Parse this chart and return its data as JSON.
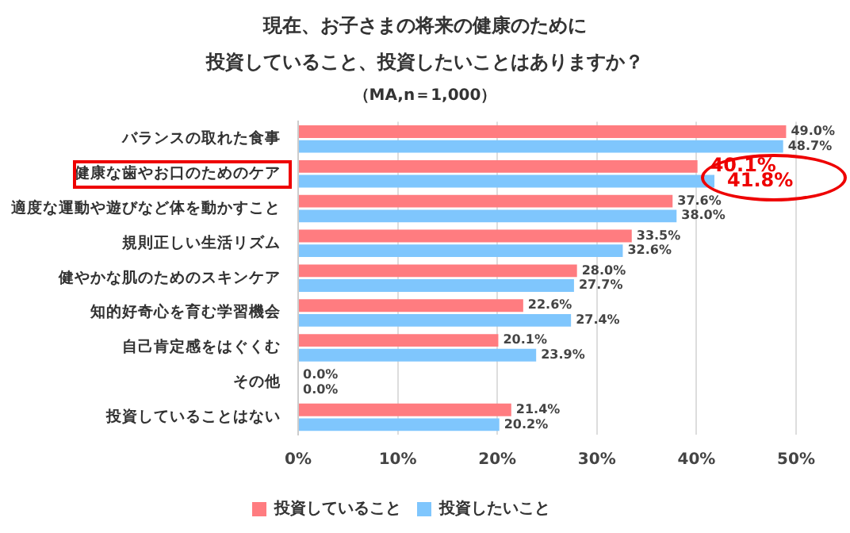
{
  "chart_data": {
    "type": "bar",
    "orientation": "horizontal",
    "title": "現在、お子さまの将来の健康のために",
    "subtitle": "投資していること、投資したいことはありますか？",
    "annotations": [
      "（MA,n＝1,000）"
    ],
    "categories": [
      "バランスの取れた食事",
      "健康な歯やお口のためのケア",
      "適度な運動や遊びなど体を動かすこと",
      "規則正しい生活リズム",
      "健やかな肌のためのスキンケア",
      "知的好奇心を育む学習機会",
      "自己肯定感をはぐくむ",
      "その他",
      "投資していることはない"
    ],
    "series": [
      {
        "name": "投資していること",
        "color": "#ff7c80",
        "values": [
          49.0,
          40.1,
          37.6,
          33.5,
          28.0,
          22.6,
          20.1,
          0.0,
          21.4
        ],
        "value_labels": [
          "49.0%",
          "40.1%",
          "37.6%",
          "33.5%",
          "28.0%",
          "22.6%",
          "20.1%",
          "0.0%",
          "21.4%"
        ]
      },
      {
        "name": "投資したいこと",
        "color": "#7fc6fd",
        "values": [
          48.7,
          41.8,
          38.0,
          32.6,
          27.7,
          27.4,
          23.9,
          0.0,
          20.2
        ],
        "value_labels": [
          "48.7%",
          "41.8%",
          "38.0%",
          "32.6%",
          "27.7%",
          "27.4%",
          "23.9%",
          "0.0%",
          "20.2%"
        ]
      }
    ],
    "xlim": [
      0,
      50
    ],
    "xticks": [
      {
        "value": 0,
        "label": "0%"
      },
      {
        "value": 10,
        "label": "10%"
      },
      {
        "value": 20,
        "label": "20%"
      },
      {
        "value": 30,
        "label": "30%"
      },
      {
        "value": 40,
        "label": "40%"
      },
      {
        "value": 50,
        "label": "50%"
      }
    ],
    "grid": "x",
    "legend": "bottom"
  }
}
